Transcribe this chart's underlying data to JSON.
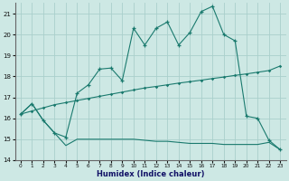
{
  "xlabel": "Humidex (Indice chaleur)",
  "xlim": [
    -0.5,
    23.5
  ],
  "ylim": [
    14,
    21.5
  ],
  "yticks": [
    14,
    15,
    16,
    17,
    18,
    19,
    20,
    21
  ],
  "xticks": [
    0,
    1,
    2,
    3,
    4,
    5,
    6,
    7,
    8,
    9,
    10,
    11,
    12,
    13,
    14,
    15,
    16,
    17,
    18,
    19,
    20,
    21,
    22,
    23
  ],
  "bg_color": "#cde8e4",
  "grid_color": "#aacfcc",
  "line_color": "#1a7a6e",
  "series1_x": [
    0,
    1,
    2,
    3,
    4,
    5,
    6,
    7,
    8,
    9,
    10,
    11,
    12,
    13,
    14,
    15,
    16,
    17,
    18,
    19,
    20,
    21,
    22,
    23
  ],
  "series1_y": [
    16.2,
    16.7,
    15.9,
    15.3,
    14.7,
    15.0,
    15.0,
    15.0,
    15.0,
    15.0,
    15.0,
    14.95,
    14.9,
    14.9,
    14.85,
    14.8,
    14.8,
    14.8,
    14.75,
    14.75,
    14.75,
    14.75,
    14.85,
    14.5
  ],
  "series2_x": [
    0,
    1,
    2,
    3,
    4,
    5,
    6,
    7,
    8,
    9,
    10,
    11,
    12,
    13,
    14,
    15,
    16,
    17,
    18,
    19,
    20,
    21,
    22,
    23
  ],
  "series2_y": [
    16.2,
    16.35,
    16.5,
    16.65,
    16.75,
    16.85,
    16.95,
    17.05,
    17.15,
    17.25,
    17.35,
    17.45,
    17.52,
    17.6,
    17.68,
    17.75,
    17.82,
    17.9,
    17.97,
    18.05,
    18.12,
    18.2,
    18.28,
    18.5
  ],
  "series3_x": [
    0,
    1,
    2,
    3,
    4,
    5,
    6,
    7,
    8,
    9,
    10,
    11,
    12,
    13,
    14,
    15,
    16,
    17,
    18,
    19,
    20,
    21,
    22,
    23
  ],
  "series3_y": [
    16.2,
    16.7,
    15.9,
    15.3,
    15.1,
    17.2,
    17.6,
    18.35,
    18.4,
    17.8,
    20.3,
    19.5,
    20.3,
    20.6,
    19.5,
    20.1,
    21.1,
    21.35,
    20.0,
    19.7,
    16.1,
    16.0,
    14.95,
    14.5
  ]
}
